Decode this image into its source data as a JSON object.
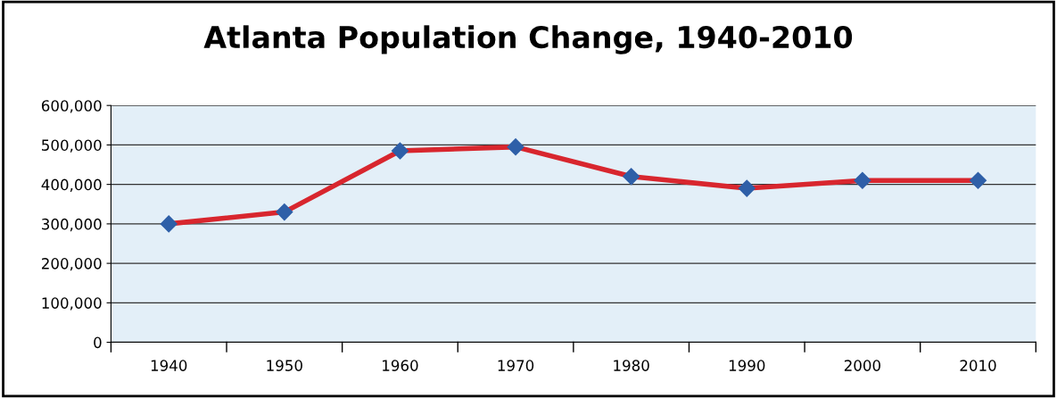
{
  "chart_data": {
    "type": "line",
    "title": "Atlanta Population Change, 1940-2010",
    "categories": [
      "1940",
      "1950",
      "1960",
      "1970",
      "1980",
      "1990",
      "2000",
      "2010"
    ],
    "series": [
      {
        "color": "#d8262e",
        "values": [
          300000,
          330000,
          485000,
          495000,
          420000,
          390000,
          410000,
          410000
        ]
      }
    ],
    "ylim": [
      0,
      600000
    ],
    "yticks": [
      {
        "value": 0,
        "label": "0"
      },
      {
        "value": 100000,
        "label": "100,000"
      },
      {
        "value": 200000,
        "label": "200,000"
      },
      {
        "value": 300000,
        "label": "300,000"
      },
      {
        "value": 400000,
        "label": "400,000"
      },
      {
        "value": 500000,
        "label": "500,000"
      },
      {
        "value": 600000,
        "label": "600,000"
      }
    ],
    "grid": "y",
    "marker": "diamond",
    "legend": false
  }
}
